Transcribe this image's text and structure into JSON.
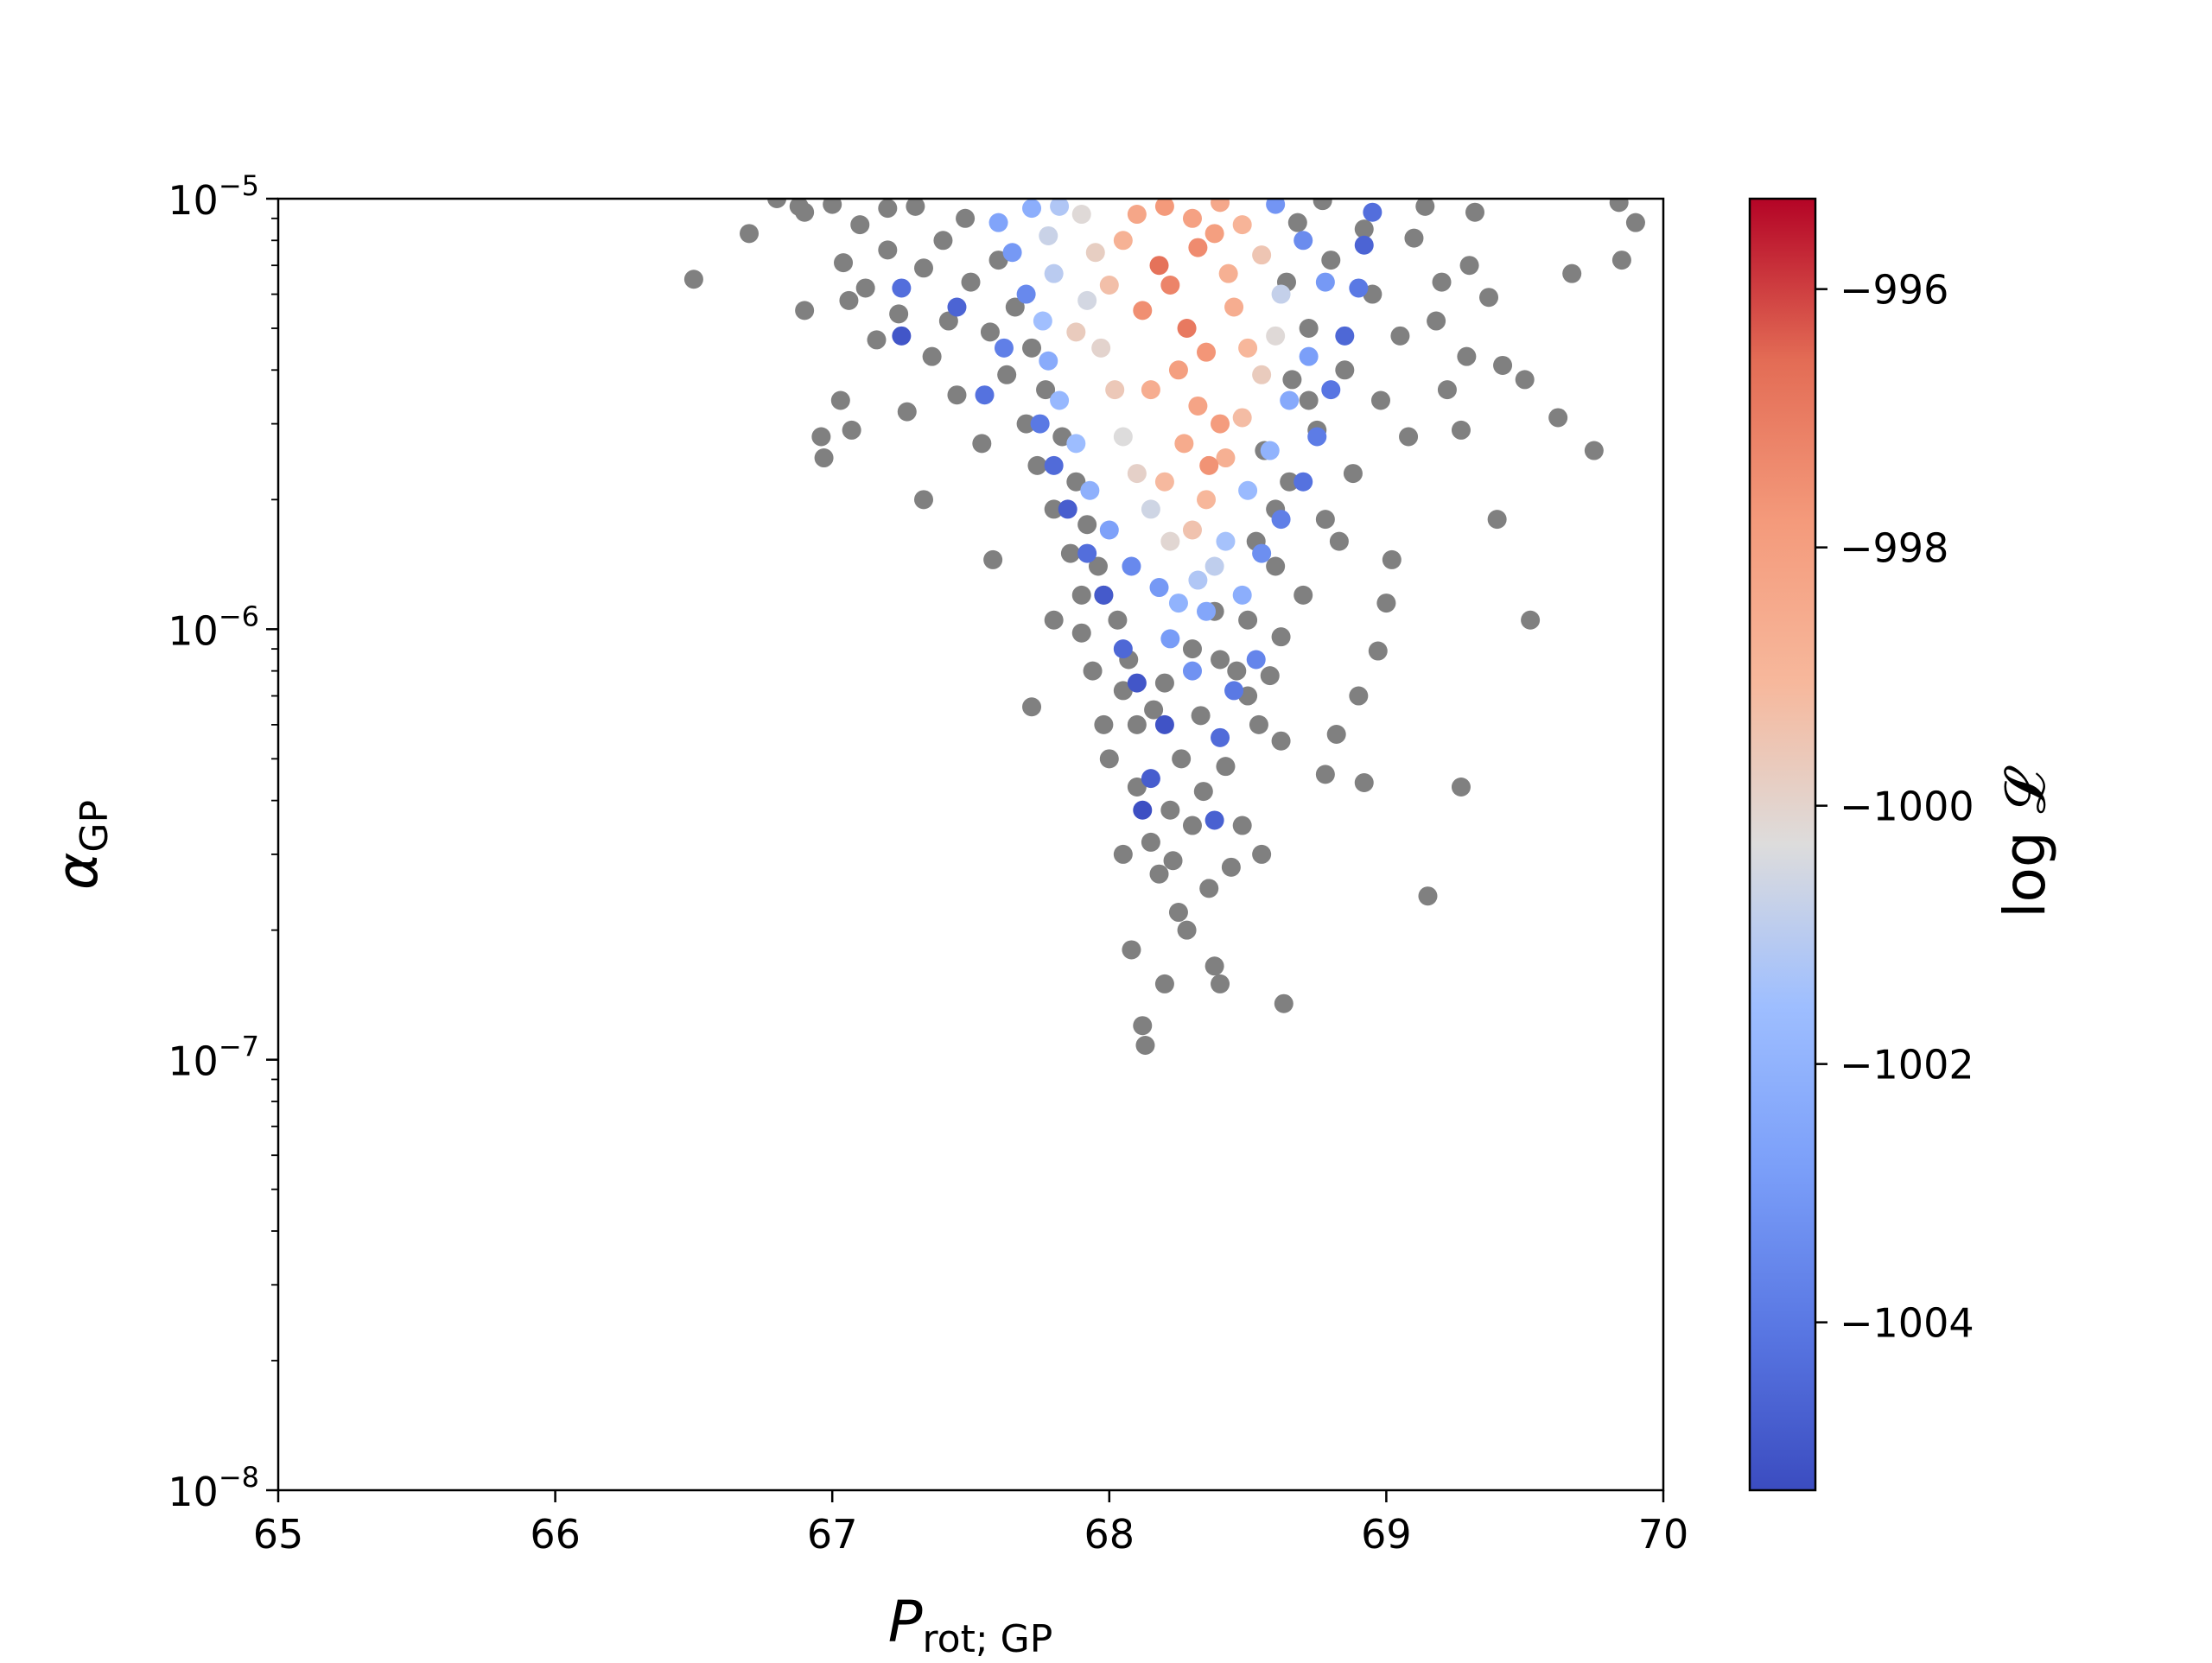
{
  "chart_data": {
    "type": "scatter",
    "title": "",
    "xlabel": {
      "main": "P",
      "sub": "rot; GP"
    },
    "ylabel": {
      "main": "α",
      "sub": "GP"
    },
    "xlim": [
      65,
      70
    ],
    "ylim": [
      1e-08,
      1e-05
    ],
    "yscale": "log",
    "x_ticks": [
      "65",
      "66",
      "67",
      "68",
      "69",
      "70"
    ],
    "y_ticks": [
      {
        "base": "10",
        "exp": "−8",
        "value": 1e-08
      },
      {
        "base": "10",
        "exp": "−7",
        "value": 1e-07
      },
      {
        "base": "10",
        "exp": "−6",
        "value": 1e-06
      },
      {
        "base": "10",
        "exp": "−5",
        "value": 1e-05
      }
    ],
    "grid": false,
    "colorbar": {
      "label": "log 𝓛",
      "min": -1005.3,
      "max": -995.3,
      "ticks": [
        "−996",
        "−998",
        "−1000",
        "−1002",
        "−1004"
      ],
      "tick_values": [
        -996,
        -998,
        -1000,
        -1002,
        -1004
      ],
      "colormap": "coolwarm"
    },
    "series": [
      {
        "color": "#808080",
        "points": [
          [
            66.5,
            6.5e-06
          ],
          [
            66.7,
            8.3e-06
          ],
          [
            66.8,
            1e-05
          ],
          [
            66.9,
            5.5e-06
          ],
          [
            66.9,
            9.3e-06
          ],
          [
            66.96,
            2.8e-06
          ],
          [
            66.97,
            2.5e-06
          ],
          [
            67.03,
            3.4e-06
          ],
          [
            67.07,
            2.9e-06
          ],
          [
            67.06,
            5.8e-06
          ],
          [
            67.2,
            9.5e-06
          ],
          [
            67.33,
            2e-06
          ],
          [
            67.58,
            1.45e-06
          ],
          [
            67.72,
            6.6e-07
          ],
          [
            67.8,
            1.05e-06
          ],
          [
            67.9,
            1.2e-06
          ],
          [
            68.0,
            5e-07
          ],
          [
            68.05,
            3e-07
          ],
          [
            68.08,
            1.8e-07
          ],
          [
            68.12,
            1.2e-07
          ],
          [
            68.13,
            1.08e-07
          ],
          [
            68.2,
            1.5e-07
          ],
          [
            68.25,
            2.2e-07
          ],
          [
            68.38,
            1.65e-07
          ],
          [
            68.4,
            1.5e-07
          ],
          [
            68.63,
            1.35e-07
          ],
          [
            68.3,
            3.5e-07
          ],
          [
            68.42,
            4.8e-07
          ],
          [
            68.55,
            3e-07
          ],
          [
            68.62,
            5.5e-07
          ],
          [
            68.78,
            4.6e-07
          ],
          [
            68.82,
            5.7e-07
          ],
          [
            68.92,
            4.4e-07
          ],
          [
            68.9,
            7e-07
          ],
          [
            68.97,
            8.9e-07
          ],
          [
            69.0,
            1.15e-06
          ],
          [
            69.02,
            1.45e-06
          ],
          [
            69.15,
            2.4e-07
          ],
          [
            69.27,
            4.3e-07
          ],
          [
            69.4,
            1.8e-06
          ],
          [
            69.52,
            1.05e-06
          ],
          [
            69.5,
            3.8e-06
          ],
          [
            69.62,
            3.1e-06
          ],
          [
            69.75,
            2.6e-06
          ],
          [
            69.67,
            6.7e-06
          ],
          [
            69.85,
            7.2e-06
          ],
          [
            69.84,
            9.8e-06
          ],
          [
            69.9,
            8.8e-06
          ],
          [
            69.27,
            2.9e-06
          ],
          [
            69.29,
            4.3e-06
          ],
          [
            69.3,
            7e-06
          ],
          [
            69.32,
            9.3e-06
          ],
          [
            69.37,
            5.9e-06
          ],
          [
            69.42,
            4.1e-06
          ],
          [
            69.18,
            5.2e-06
          ],
          [
            69.2,
            6.4e-06
          ],
          [
            69.22,
            3.6e-06
          ],
          [
            69.08,
            2.8e-06
          ],
          [
            69.05,
            4.8e-06
          ],
          [
            69.1,
            8.1e-06
          ],
          [
            69.14,
            9.6e-06
          ],
          [
            68.98,
            3.4e-06
          ],
          [
            68.95,
            6e-06
          ],
          [
            68.92,
            8.5e-06
          ],
          [
            68.88,
            2.3e-06
          ],
          [
            68.85,
            4e-06
          ],
          [
            68.83,
            1.6e-06
          ],
          [
            68.8,
            7.2e-06
          ],
          [
            68.77,
            9.9e-06
          ],
          [
            68.75,
            2.9e-06
          ],
          [
            68.72,
            5e-06
          ],
          [
            68.7,
            1.2e-06
          ],
          [
            68.68,
            8.8e-06
          ],
          [
            68.66,
            3.8e-06
          ],
          [
            68.64,
            6.4e-06
          ],
          [
            68.62,
            9.6e-07
          ],
          [
            68.6,
            1.9e-06
          ],
          [
            68.58,
            7.8e-07
          ],
          [
            68.56,
            2.6e-06
          ],
          [
            68.54,
            6e-07
          ],
          [
            68.5,
            1.05e-06
          ],
          [
            68.48,
            3.5e-07
          ],
          [
            68.46,
            8e-07
          ],
          [
            68.44,
            2.8e-07
          ],
          [
            68.36,
            2.5e-07
          ],
          [
            68.33,
            6.3e-07
          ],
          [
            68.28,
            2e-07
          ],
          [
            68.22,
            3.8e-07
          ],
          [
            68.18,
            2.7e-07
          ],
          [
            68.16,
            6.5e-07
          ],
          [
            68.1,
            4.3e-07
          ],
          [
            68.07,
            8.5e-07
          ],
          [
            68.03,
            1.05e-06
          ],
          [
            67.98,
            6e-07
          ],
          [
            67.96,
            1.4e-06
          ],
          [
            67.94,
            8e-07
          ],
          [
            67.92,
            1.75e-06
          ],
          [
            67.88,
            2.2e-06
          ],
          [
            67.86,
            1.5e-06
          ],
          [
            67.83,
            2.8e-06
          ],
          [
            67.8,
            1.9e-06
          ],
          [
            67.77,
            3.6e-06
          ],
          [
            67.74,
            2.4e-06
          ],
          [
            67.72,
            4.5e-06
          ],
          [
            67.7,
            3e-06
          ],
          [
            67.66,
            5.6e-06
          ],
          [
            67.63,
            3.9e-06
          ],
          [
            67.6,
            7.2e-06
          ],
          [
            67.57,
            4.9e-06
          ],
          [
            67.54,
            2.7e-06
          ],
          [
            67.5,
            6.4e-06
          ],
          [
            67.48,
            9e-06
          ],
          [
            67.45,
            3.5e-06
          ],
          [
            67.42,
            5.2e-06
          ],
          [
            67.4,
            8e-06
          ],
          [
            67.36,
            4.3e-06
          ],
          [
            67.33,
            6.9e-06
          ],
          [
            67.3,
            9.6e-06
          ],
          [
            67.27,
            3.2e-06
          ],
          [
            67.24,
            5.4e-06
          ],
          [
            67.2,
            7.6e-06
          ],
          [
            67.16,
            4.7e-06
          ],
          [
            67.12,
            6.2e-06
          ],
          [
            67.1,
            8.7e-06
          ],
          [
            67.0,
            9.7e-06
          ],
          [
            67.04,
            7.1e-06
          ],
          [
            66.88,
            9.6e-06
          ],
          [
            68.4,
            8.5e-07
          ],
          [
            68.5,
            7e-07
          ],
          [
            68.6,
            1.4e-06
          ],
          [
            68.3,
            9e-07
          ],
          [
            68.2,
            7.5e-07
          ],
          [
            68.26,
            5e-07
          ],
          [
            68.34,
            4.2e-07
          ],
          [
            68.1,
            6e-07
          ],
          [
            68.15,
            3.2e-07
          ],
          [
            68.23,
            2.9e-07
          ],
          [
            68.05,
            7.2e-07
          ],
          [
            68.38,
            1.1e-06
          ],
          [
            68.53,
            1.6e-06
          ],
          [
            68.65,
            2.2e-06
          ],
          [
            68.78,
            1.8e-06
          ],
          [
            68.72,
            3.4e-06
          ],
          [
            67.98,
            1.2e-06
          ],
          [
            67.9,
            9.8e-07
          ]
        ]
      },
      {
        "color": "colormap",
        "points": [
          [
            67.25,
            4.8e-06,
            -1005.0
          ],
          [
            67.25,
            6.2e-06,
            -1004.3
          ],
          [
            67.45,
            5.6e-06,
            -1004.6
          ],
          [
            67.55,
            3.5e-06,
            -1004.2
          ],
          [
            67.62,
            4.5e-06,
            -1003.8
          ],
          [
            67.7,
            6e-06,
            -1003.5
          ],
          [
            67.65,
            7.5e-06,
            -1003.0
          ],
          [
            67.6,
            8.8e-06,
            -1002.6
          ],
          [
            67.72,
            9.5e-06,
            -1002.2
          ],
          [
            67.75,
            3e-06,
            -1004.0
          ],
          [
            67.8,
            2.4e-06,
            -1004.4
          ],
          [
            67.85,
            1.9e-06,
            -1004.8
          ],
          [
            67.92,
            1.5e-06,
            -1004.3
          ],
          [
            67.98,
            1.2e-06,
            -1004.9
          ],
          [
            68.05,
            9e-07,
            -1004.5
          ],
          [
            68.1,
            7.5e-07,
            -1005.0
          ],
          [
            68.2,
            6e-07,
            -1005.1
          ],
          [
            68.15,
            4.5e-07,
            -1004.8
          ],
          [
            68.12,
            3.8e-07,
            -1005.2
          ],
          [
            68.38,
            3.6e-07,
            -1004.7
          ],
          [
            68.4,
            5.6e-07,
            -1004.4
          ],
          [
            68.45,
            7.2e-07,
            -1004.0
          ],
          [
            68.53,
            8.5e-07,
            -1003.6
          ],
          [
            68.3,
            8e-07,
            -1003.2
          ],
          [
            68.22,
            9.5e-07,
            -1002.9
          ],
          [
            68.35,
            1.1e-06,
            -1002.5
          ],
          [
            68.48,
            1.2e-06,
            -1002.2
          ],
          [
            68.55,
            1.5e-06,
            -1003.3
          ],
          [
            68.62,
            1.8e-06,
            -1003.8
          ],
          [
            68.7,
            2.2e-06,
            -1004.2
          ],
          [
            68.75,
            2.8e-06,
            -1003.9
          ],
          [
            68.8,
            3.6e-06,
            -1004.1
          ],
          [
            68.85,
            4.8e-06,
            -1004.5
          ],
          [
            68.9,
            6.2e-06,
            -1004.0
          ],
          [
            68.92,
            7.8e-06,
            -1004.6
          ],
          [
            68.95,
            9.3e-06,
            -1004.3
          ],
          [
            68.6,
            9.7e-06,
            -1003.1
          ],
          [
            68.7,
            8e-06,
            -1003.4
          ],
          [
            68.78,
            6.4e-06,
            -1003.0
          ],
          [
            68.72,
            4.3e-06,
            -1002.8
          ],
          [
            68.65,
            3.4e-06,
            -1002.4
          ],
          [
            68.58,
            2.6e-06,
            -1002.0
          ],
          [
            68.5,
            2.1e-06,
            -1001.7
          ],
          [
            68.42,
            1.6e-06,
            -1001.4
          ],
          [
            68.38,
            1.4e-06,
            -1000.9
          ],
          [
            68.32,
            1.3e-06,
            -1001.2
          ],
          [
            68.25,
            1.15e-06,
            -1002.0
          ],
          [
            68.18,
            1.25e-06,
            -1003.0
          ],
          [
            68.08,
            1.4e-06,
            -1003.5
          ],
          [
            68.0,
            1.7e-06,
            -1002.7
          ],
          [
            67.93,
            2.1e-06,
            -1002.1
          ],
          [
            67.88,
            2.7e-06,
            -1001.6
          ],
          [
            67.82,
            3.4e-06,
            -1001.8
          ],
          [
            67.78,
            4.2e-06,
            -1002.3
          ],
          [
            67.76,
            5.2e-06,
            -1001.5
          ],
          [
            67.8,
            6.7e-06,
            -1001.0
          ],
          [
            67.78,
            8.2e-06,
            -1000.7
          ],
          [
            67.82,
            9.6e-06,
            -1001.2
          ],
          [
            67.9,
            9.2e-06,
            -1000.2
          ],
          [
            67.95,
            7.5e-06,
            -999.8
          ],
          [
            67.92,
            5.8e-06,
            -1000.5
          ],
          [
            67.97,
            4.5e-06,
            -1000.0
          ],
          [
            68.02,
            3.6e-06,
            -999.6
          ],
          [
            68.05,
            2.8e-06,
            -1000.3
          ],
          [
            68.1,
            2.3e-06,
            -999.9
          ],
          [
            68.15,
            1.9e-06,
            -1000.6
          ],
          [
            68.22,
            1.6e-06,
            -1000.1
          ],
          [
            68.3,
            1.7e-06,
            -999.4
          ],
          [
            68.35,
            2e-06,
            -999.0
          ],
          [
            68.42,
            2.5e-06,
            -998.7
          ],
          [
            68.48,
            3.1e-06,
            -999.2
          ],
          [
            68.55,
            3.9e-06,
            -999.7
          ],
          [
            68.6,
            4.8e-06,
            -1000.2
          ],
          [
            68.62,
            6e-06,
            -1000.8
          ],
          [
            68.55,
            7.4e-06,
            -999.5
          ],
          [
            68.48,
            8.7e-06,
            -998.9
          ],
          [
            68.4,
            9.8e-06,
            -998.4
          ],
          [
            68.3,
            9e-06,
            -998.1
          ],
          [
            68.2,
            9.6e-06,
            -997.8
          ],
          [
            68.1,
            9.2e-06,
            -998.3
          ],
          [
            68.05,
            8e-06,
            -998.8
          ],
          [
            68.18,
            7e-06,
            -996.7
          ],
          [
            68.22,
            6.3e-06,
            -997.2
          ],
          [
            68.28,
            5e-06,
            -996.9
          ],
          [
            68.12,
            5.5e-06,
            -997.5
          ],
          [
            68.35,
            4.4e-06,
            -997.7
          ],
          [
            68.25,
            4e-06,
            -998.0
          ],
          [
            68.15,
            3.6e-06,
            -998.6
          ],
          [
            68.32,
            3.3e-06,
            -998.2
          ],
          [
            68.4,
            3e-06,
            -997.9
          ],
          [
            68.27,
            2.7e-06,
            -998.5
          ],
          [
            68.36,
            2.4e-06,
            -997.6
          ],
          [
            68.2,
            2.2e-06,
            -999.1
          ],
          [
            68.45,
            5.6e-06,
            -998.6
          ],
          [
            68.5,
            4.5e-06,
            -999.0
          ],
          [
            68.0,
            6.3e-06,
            -999.3
          ],
          [
            67.88,
            4.9e-06,
            -999.7
          ],
          [
            68.32,
            7.7e-06,
            -997.4
          ],
          [
            68.43,
            6.7e-06,
            -998.7
          ],
          [
            68.38,
            8.3e-06,
            -998.0
          ]
        ]
      }
    ]
  }
}
